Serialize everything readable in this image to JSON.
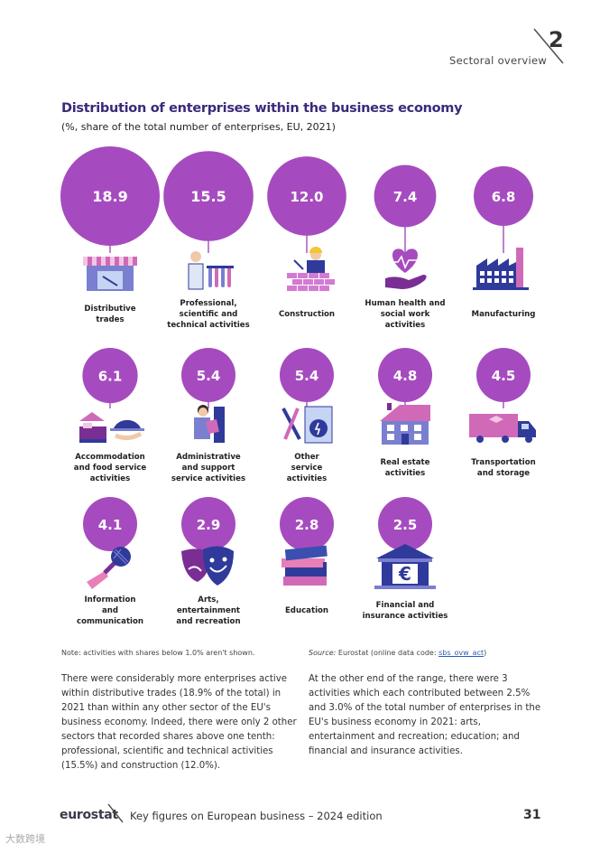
{
  "header": {
    "chapter_number": "2",
    "chapter_title": "Sectoral overview"
  },
  "chart_title": "Distribution of enterprises within the business economy",
  "chart_subtitle": "(%, share of the total number of enterprises, EU, 2021)",
  "chart_data": {
    "type": "bubble",
    "title": "Distribution of enterprises within the business economy",
    "subtitle": "(%, share of the total number of enterprises, EU, 2021)",
    "unit": "%",
    "categories": [
      "Distributive trades",
      "Professional, scientific and technical activities",
      "Construction",
      "Human health and social work activities",
      "Manufacturing",
      "Accommodation and food service activities",
      "Administrative and support service activities",
      "Other service activities",
      "Real estate activities",
      "Transportation and storage",
      "Information and communication",
      "Arts, entertainment and recreation",
      "Education",
      "Financial and insurance activities"
    ],
    "values": [
      18.9,
      15.5,
      12.0,
      7.4,
      6.8,
      6.1,
      5.4,
      5.4,
      4.8,
      4.5,
      4.1,
      2.9,
      2.8,
      2.5
    ],
    "value_labels": [
      "18.9",
      "15.5",
      "12.0",
      "7.4",
      "6.8",
      "6.1",
      "5.4",
      "5.4",
      "4.8",
      "4.5",
      "4.1",
      "2.9",
      "2.8",
      "2.5"
    ],
    "display_labels": [
      [
        "Distributive",
        "trades"
      ],
      [
        "Professional,",
        "scientific and",
        "technical activities"
      ],
      [
        "Construction"
      ],
      [
        "Human health and",
        "social work",
        "activities"
      ],
      [
        "Manufacturing"
      ],
      [
        "Accommodation",
        "and food service",
        "activities"
      ],
      [
        "Administrative",
        "and support",
        "service activities"
      ],
      [
        "Other",
        "service",
        "activities"
      ],
      [
        "Real estate",
        "activities"
      ],
      [
        "Transportation",
        "and storage"
      ],
      [
        "Information",
        "and",
        "communication"
      ],
      [
        "Arts,",
        "entertainment",
        "and recreation"
      ],
      [
        "Education"
      ],
      [
        "Financial and",
        "insurance activities"
      ]
    ],
    "icons": [
      "shop-icon",
      "scientist-icon",
      "construction-worker-icon",
      "heart-hand-icon",
      "factory-icon",
      "hotel-bed-food-icon",
      "office-worker-icon",
      "repair-tools-icon",
      "house-icon",
      "truck-icon",
      "microphone-icon",
      "theatre-masks-icon",
      "books-icon",
      "bank-euro-icon"
    ],
    "colors": {
      "bubble": "#a64bbf",
      "stem": "#a64bbf",
      "accent_blue": "#2f3a9a",
      "accent_pink": "#e87fb8"
    }
  },
  "note": "Note: activities with shares below 1.0% aren't shown.",
  "source": {
    "label": "Source:",
    "text": " Eurostat (online data code: ",
    "code": "sbs_ovw_act",
    "close": ")"
  },
  "paragraphs": {
    "left": "There were considerably more enterprises active within distributive trades (18.9% of the total) in 2021 than within any other sector of the EU's business economy. Indeed, there were only 2 other sectors that recorded shares above one tenth: professional, scientific and technical activities (15.5%) and construction (12.0%).",
    "right": "At the other end of the range, there were 3 activities which each contributed between 2.5% and 3.0% of the total number of enterprises in the EU's business economy in 2021: arts, entertainment and recreation; education; and financial and insurance activities."
  },
  "footer": {
    "logo": "eurostat",
    "title": "Key figures on European business – 2024 edition",
    "page_number": "31"
  },
  "watermark": "大数跨境"
}
